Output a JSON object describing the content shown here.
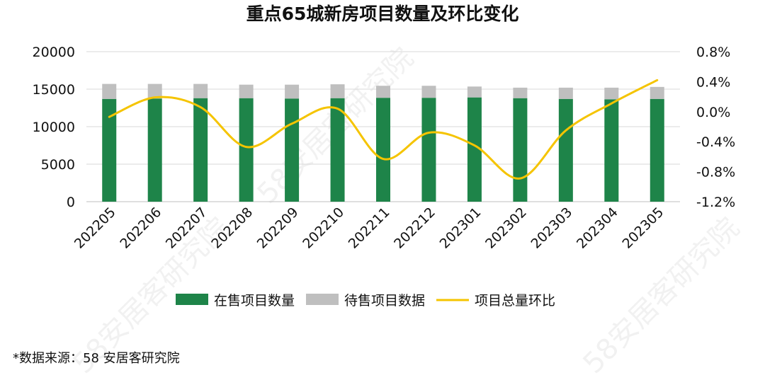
{
  "chart_data": {
    "type": "bar+line",
    "title": "重点65城新房项目数量及环比变化",
    "categories": [
      "202205",
      "202206",
      "202207",
      "202208",
      "202209",
      "202210",
      "202211",
      "202212",
      "202301",
      "202302",
      "202303",
      "202304",
      "202305"
    ],
    "series": [
      {
        "name": "在售项目数量",
        "type": "bar",
        "stack": "total",
        "axis": "left",
        "color": "#1E8449",
        "values": [
          13700,
          13750,
          13800,
          13800,
          13750,
          13800,
          13850,
          13850,
          13900,
          13800,
          13700,
          13650,
          13700
        ]
      },
      {
        "name": "待售项目数据",
        "type": "bar",
        "stack": "total",
        "axis": "left",
        "color": "#BFBFBF",
        "values": [
          2000,
          1950,
          1900,
          1800,
          1850,
          1850,
          1600,
          1600,
          1450,
          1400,
          1500,
          1550,
          1600
        ]
      },
      {
        "name": "项目总量环比",
        "type": "line",
        "axis": "right",
        "color": "#F5C400",
        "smooth": true,
        "values": [
          -0.07,
          0.19,
          0.06,
          -0.47,
          -0.16,
          0.04,
          -0.63,
          -0.28,
          -0.45,
          -0.89,
          -0.25,
          0.11,
          0.42
        ]
      }
    ],
    "y_left": {
      "min": 0,
      "max": 20000,
      "ticks": [
        0,
        5000,
        10000,
        15000,
        20000
      ],
      "tick_labels": [
        "0",
        "5000",
        "10000",
        "15000",
        "20000"
      ]
    },
    "y_right": {
      "min": -1.2,
      "max": 0.8,
      "ticks": [
        -1.2,
        -0.8,
        -0.4,
        0.0,
        0.4,
        0.8
      ],
      "tick_labels": [
        "-1.2%",
        "-0.8%",
        "-0.4%",
        "0.0%",
        "0.4%",
        "0.8%"
      ]
    },
    "grid": true,
    "legend": "bottom"
  },
  "source_note": "*数据来源：58 安居客研究院",
  "watermark": "58安居客研究院"
}
